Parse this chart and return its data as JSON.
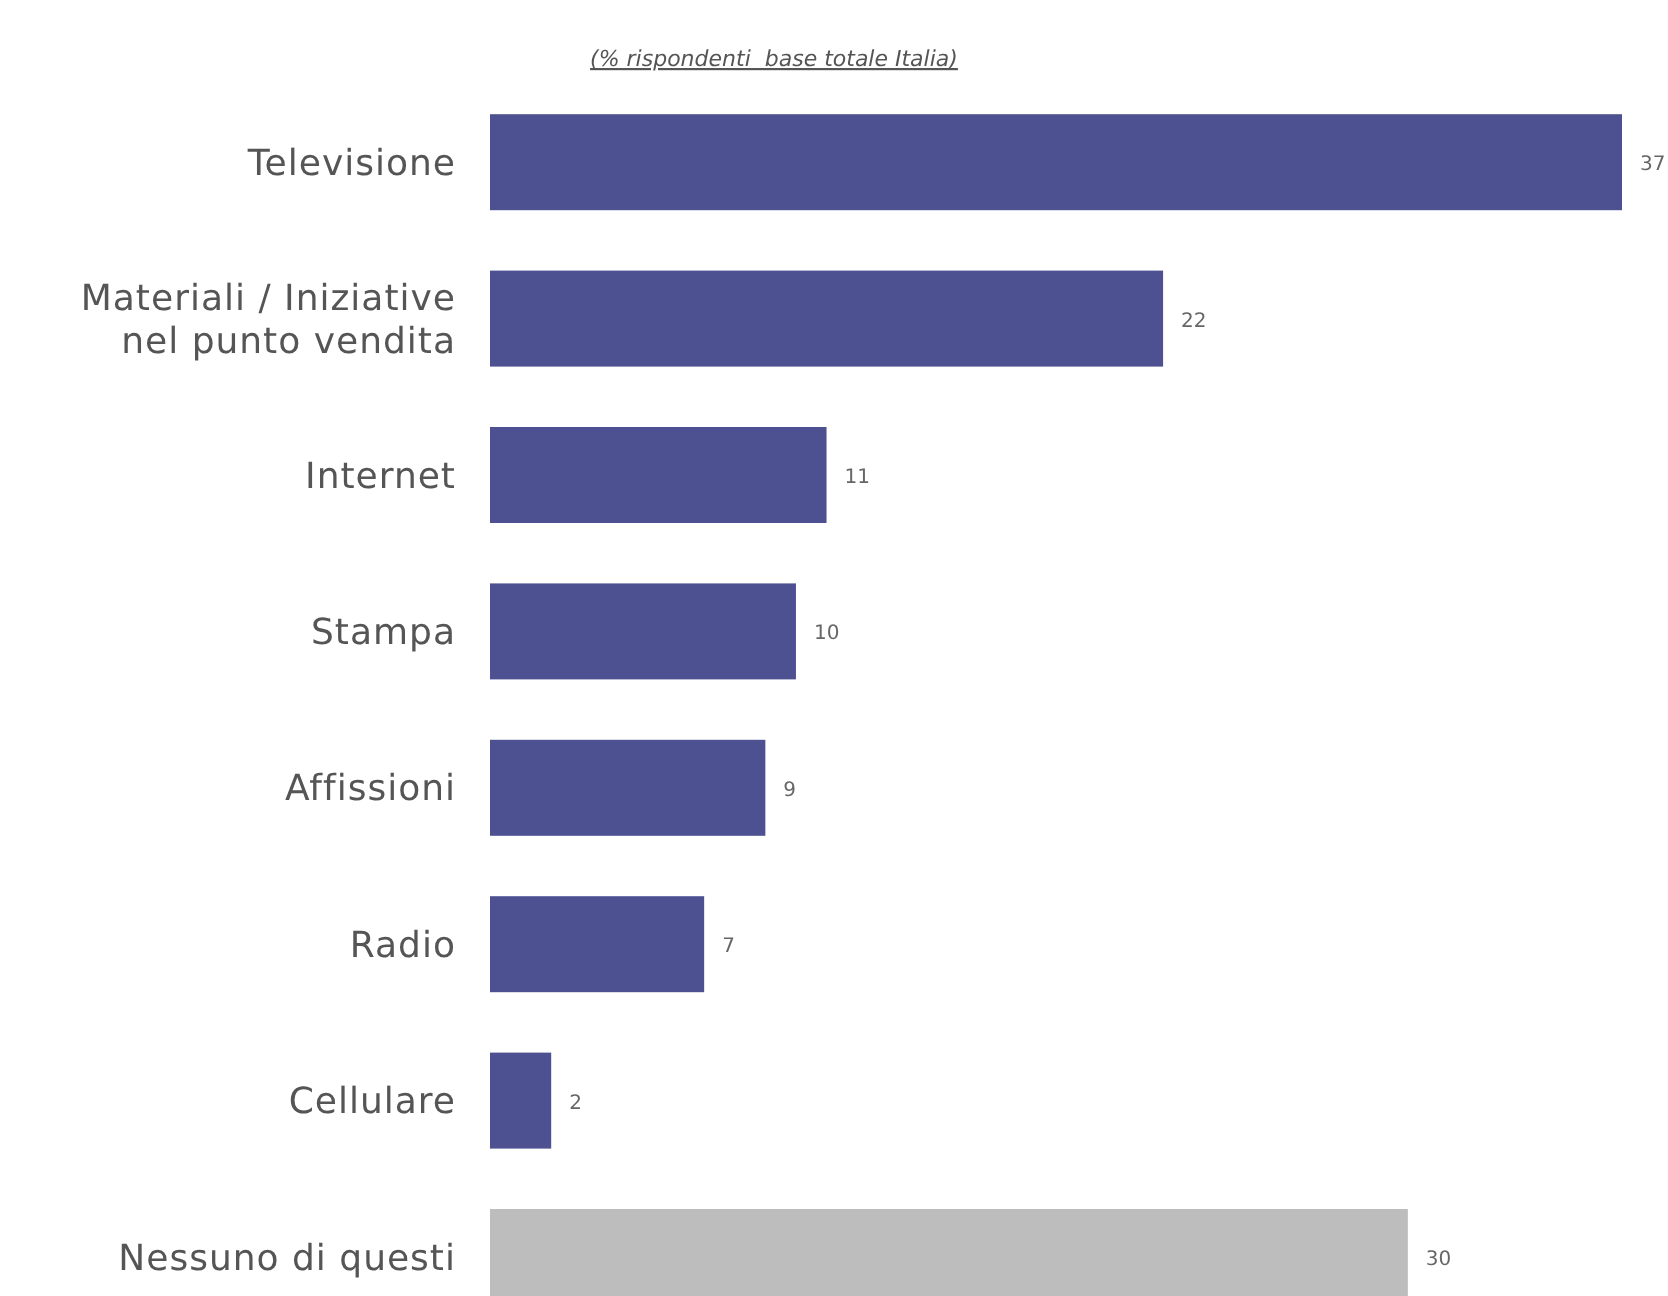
{
  "chart_data": {
    "type": "bar",
    "orientation": "horizontal",
    "title": "(% rispondenti  base totale Italia)",
    "categories": [
      "Televisione",
      "Materiali / Iniziative\nnel punto vendita",
      "Internet",
      "Stampa",
      "Affissioni",
      "Radio",
      "Cellulare",
      "Nessuno di questi"
    ],
    "values": [
      37,
      22,
      11,
      10,
      9,
      7,
      2,
      30
    ],
    "colors": [
      "#4e5191",
      "#4e5191",
      "#4e5191",
      "#4e5191",
      "#4e5191",
      "#4e5191",
      "#4e5191",
      "#bdbdbd"
    ],
    "data_labels": true
  }
}
